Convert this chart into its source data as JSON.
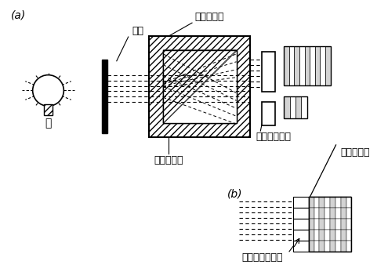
{
  "bg_color": "#ffffff",
  "label_a": "(a)",
  "label_b": "(b)",
  "label_lamp": "灯",
  "label_slit": "缝隙",
  "label_ref_cell": "参比测量池",
  "label_sample_cell": "样品测量池",
  "label_dual_diode": "双光电二极管",
  "label_detector_out": "检测器输出",
  "label_diode_array": "光电二极管阵列"
}
